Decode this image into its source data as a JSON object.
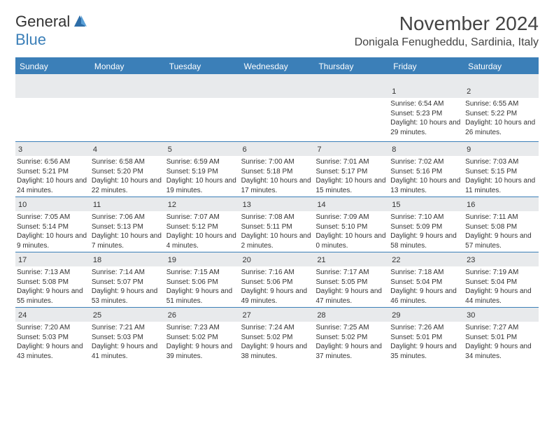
{
  "brand": {
    "general": "General",
    "blue": "Blue"
  },
  "title": "November 2024",
  "location": "Donigala Fenugheddu, Sardinia, Italy",
  "colors": {
    "header_bg": "#3b7fb8",
    "stripe_bg": "#e8eaec",
    "text": "#333333",
    "page_bg": "#ffffff"
  },
  "dow": [
    "Sunday",
    "Monday",
    "Tuesday",
    "Wednesday",
    "Thursday",
    "Friday",
    "Saturday"
  ],
  "weeks": [
    [
      {
        "n": "",
        "sr": "",
        "ss": "",
        "dl": ""
      },
      {
        "n": "",
        "sr": "",
        "ss": "",
        "dl": ""
      },
      {
        "n": "",
        "sr": "",
        "ss": "",
        "dl": ""
      },
      {
        "n": "",
        "sr": "",
        "ss": "",
        "dl": ""
      },
      {
        "n": "",
        "sr": "",
        "ss": "",
        "dl": ""
      },
      {
        "n": "1",
        "sr": "Sunrise: 6:54 AM",
        "ss": "Sunset: 5:23 PM",
        "dl": "Daylight: 10 hours and 29 minutes."
      },
      {
        "n": "2",
        "sr": "Sunrise: 6:55 AM",
        "ss": "Sunset: 5:22 PM",
        "dl": "Daylight: 10 hours and 26 minutes."
      }
    ],
    [
      {
        "n": "3",
        "sr": "Sunrise: 6:56 AM",
        "ss": "Sunset: 5:21 PM",
        "dl": "Daylight: 10 hours and 24 minutes."
      },
      {
        "n": "4",
        "sr": "Sunrise: 6:58 AM",
        "ss": "Sunset: 5:20 PM",
        "dl": "Daylight: 10 hours and 22 minutes."
      },
      {
        "n": "5",
        "sr": "Sunrise: 6:59 AM",
        "ss": "Sunset: 5:19 PM",
        "dl": "Daylight: 10 hours and 19 minutes."
      },
      {
        "n": "6",
        "sr": "Sunrise: 7:00 AM",
        "ss": "Sunset: 5:18 PM",
        "dl": "Daylight: 10 hours and 17 minutes."
      },
      {
        "n": "7",
        "sr": "Sunrise: 7:01 AM",
        "ss": "Sunset: 5:17 PM",
        "dl": "Daylight: 10 hours and 15 minutes."
      },
      {
        "n": "8",
        "sr": "Sunrise: 7:02 AM",
        "ss": "Sunset: 5:16 PM",
        "dl": "Daylight: 10 hours and 13 minutes."
      },
      {
        "n": "9",
        "sr": "Sunrise: 7:03 AM",
        "ss": "Sunset: 5:15 PM",
        "dl": "Daylight: 10 hours and 11 minutes."
      }
    ],
    [
      {
        "n": "10",
        "sr": "Sunrise: 7:05 AM",
        "ss": "Sunset: 5:14 PM",
        "dl": "Daylight: 10 hours and 9 minutes."
      },
      {
        "n": "11",
        "sr": "Sunrise: 7:06 AM",
        "ss": "Sunset: 5:13 PM",
        "dl": "Daylight: 10 hours and 7 minutes."
      },
      {
        "n": "12",
        "sr": "Sunrise: 7:07 AM",
        "ss": "Sunset: 5:12 PM",
        "dl": "Daylight: 10 hours and 4 minutes."
      },
      {
        "n": "13",
        "sr": "Sunrise: 7:08 AM",
        "ss": "Sunset: 5:11 PM",
        "dl": "Daylight: 10 hours and 2 minutes."
      },
      {
        "n": "14",
        "sr": "Sunrise: 7:09 AM",
        "ss": "Sunset: 5:10 PM",
        "dl": "Daylight: 10 hours and 0 minutes."
      },
      {
        "n": "15",
        "sr": "Sunrise: 7:10 AM",
        "ss": "Sunset: 5:09 PM",
        "dl": "Daylight: 9 hours and 58 minutes."
      },
      {
        "n": "16",
        "sr": "Sunrise: 7:11 AM",
        "ss": "Sunset: 5:08 PM",
        "dl": "Daylight: 9 hours and 57 minutes."
      }
    ],
    [
      {
        "n": "17",
        "sr": "Sunrise: 7:13 AM",
        "ss": "Sunset: 5:08 PM",
        "dl": "Daylight: 9 hours and 55 minutes."
      },
      {
        "n": "18",
        "sr": "Sunrise: 7:14 AM",
        "ss": "Sunset: 5:07 PM",
        "dl": "Daylight: 9 hours and 53 minutes."
      },
      {
        "n": "19",
        "sr": "Sunrise: 7:15 AM",
        "ss": "Sunset: 5:06 PM",
        "dl": "Daylight: 9 hours and 51 minutes."
      },
      {
        "n": "20",
        "sr": "Sunrise: 7:16 AM",
        "ss": "Sunset: 5:06 PM",
        "dl": "Daylight: 9 hours and 49 minutes."
      },
      {
        "n": "21",
        "sr": "Sunrise: 7:17 AM",
        "ss": "Sunset: 5:05 PM",
        "dl": "Daylight: 9 hours and 47 minutes."
      },
      {
        "n": "22",
        "sr": "Sunrise: 7:18 AM",
        "ss": "Sunset: 5:04 PM",
        "dl": "Daylight: 9 hours and 46 minutes."
      },
      {
        "n": "23",
        "sr": "Sunrise: 7:19 AM",
        "ss": "Sunset: 5:04 PM",
        "dl": "Daylight: 9 hours and 44 minutes."
      }
    ],
    [
      {
        "n": "24",
        "sr": "Sunrise: 7:20 AM",
        "ss": "Sunset: 5:03 PM",
        "dl": "Daylight: 9 hours and 43 minutes."
      },
      {
        "n": "25",
        "sr": "Sunrise: 7:21 AM",
        "ss": "Sunset: 5:03 PM",
        "dl": "Daylight: 9 hours and 41 minutes."
      },
      {
        "n": "26",
        "sr": "Sunrise: 7:23 AM",
        "ss": "Sunset: 5:02 PM",
        "dl": "Daylight: 9 hours and 39 minutes."
      },
      {
        "n": "27",
        "sr": "Sunrise: 7:24 AM",
        "ss": "Sunset: 5:02 PM",
        "dl": "Daylight: 9 hours and 38 minutes."
      },
      {
        "n": "28",
        "sr": "Sunrise: 7:25 AM",
        "ss": "Sunset: 5:02 PM",
        "dl": "Daylight: 9 hours and 37 minutes."
      },
      {
        "n": "29",
        "sr": "Sunrise: 7:26 AM",
        "ss": "Sunset: 5:01 PM",
        "dl": "Daylight: 9 hours and 35 minutes."
      },
      {
        "n": "30",
        "sr": "Sunrise: 7:27 AM",
        "ss": "Sunset: 5:01 PM",
        "dl": "Daylight: 9 hours and 34 minutes."
      }
    ]
  ]
}
